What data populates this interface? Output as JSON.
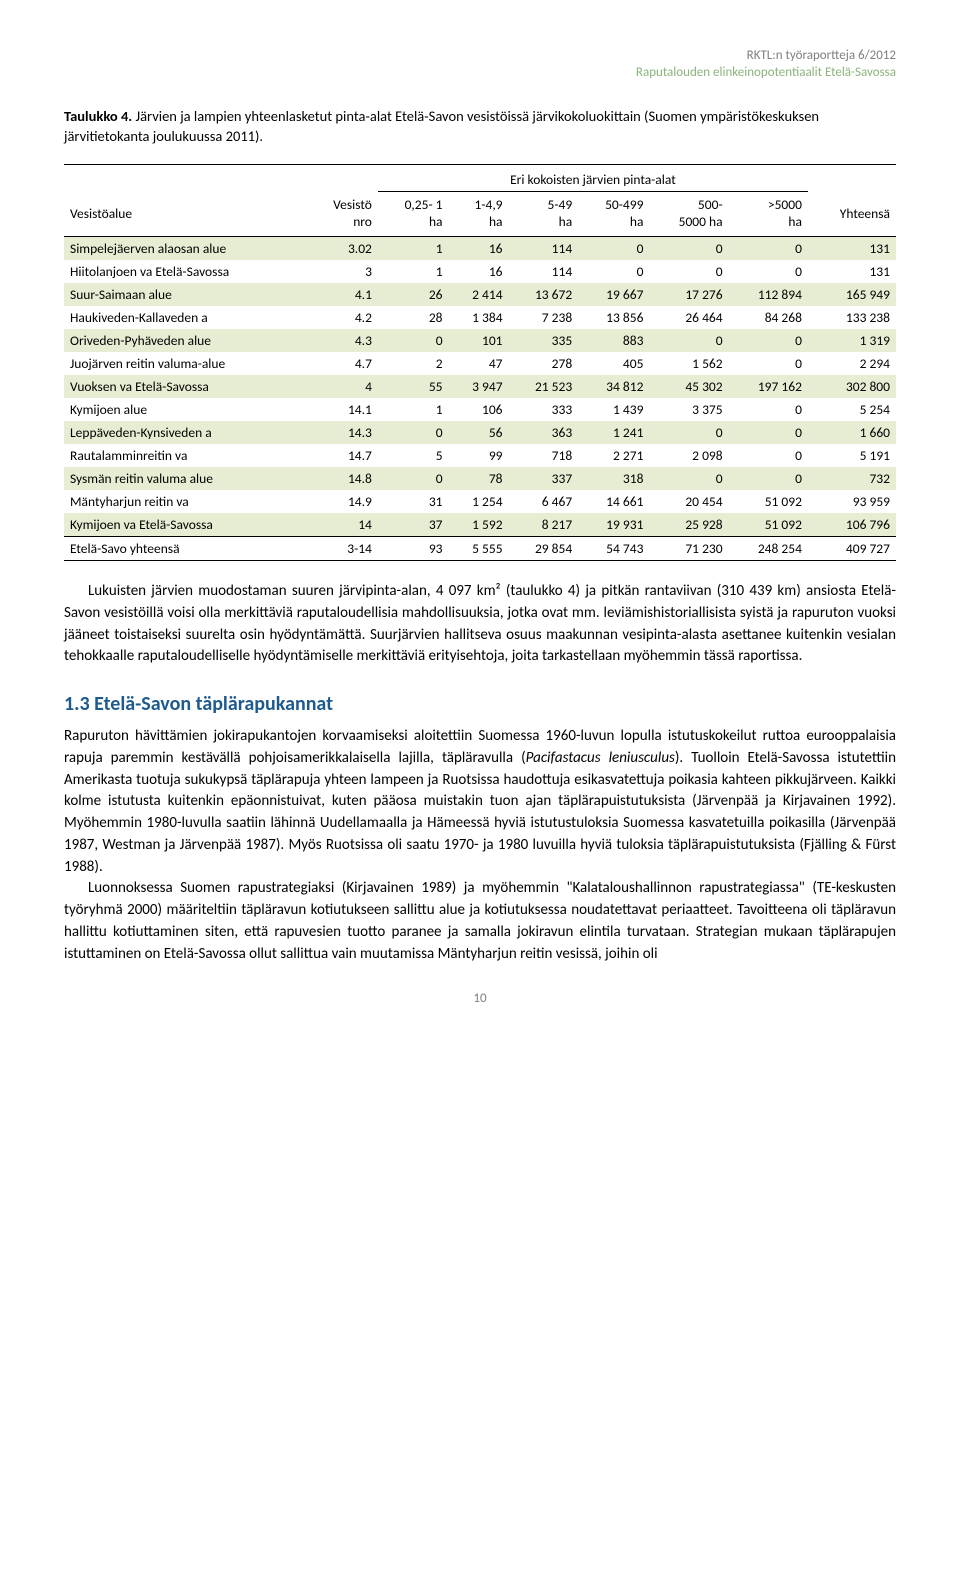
{
  "header": {
    "line1": "RKTL:n työraportteja 6/2012",
    "line2": "Raputalouden elinkeinopotentiaalit Etelä-Savossa"
  },
  "caption": {
    "bold": "Taulukko 4.",
    "text": " Järvien ja lampien yhteenlasketut pinta-alat Etelä-Savon vesistöissä järvikokoluokittain (Suomen ympäristökeskuksen järvitietokanta joulukuussa 2011)."
  },
  "table": {
    "superheader": "Eri kokoisten järvien pinta-alat",
    "columns": [
      "Vesistöalue",
      "Vesistö\nnro",
      "0,25- 1\nha",
      "1-4,9\nha",
      "5-49\nha",
      "50-499\nha",
      "500-\n5000 ha",
      ">5000\nha",
      "Yhteensä"
    ],
    "rows": [
      {
        "alt": true,
        "cells": [
          "Simpelejäerven alaosan alue",
          "3.02",
          "1",
          "16",
          "114",
          "0",
          "0",
          "0",
          "131"
        ]
      },
      {
        "alt": false,
        "cells": [
          "Hiitolanjoen va Etelä-Savossa",
          "3",
          "1",
          "16",
          "114",
          "0",
          "0",
          "0",
          "131"
        ]
      },
      {
        "alt": true,
        "cells": [
          "Suur-Saimaan alue",
          "4.1",
          "26",
          "2 414",
          "13 672",
          "19 667",
          "17 276",
          "112 894",
          "165 949"
        ]
      },
      {
        "alt": false,
        "cells": [
          "Haukiveden-Kallaveden a",
          "4.2",
          "28",
          "1 384",
          "7 238",
          "13 856",
          "26 464",
          "84 268",
          "133 238"
        ]
      },
      {
        "alt": true,
        "cells": [
          "Oriveden-Pyhäveden alue",
          "4.3",
          "0",
          "101",
          "335",
          "883",
          "0",
          "0",
          "1 319"
        ]
      },
      {
        "alt": false,
        "cells": [
          "Juojärven reitin valuma-alue",
          "4.7",
          "2",
          "47",
          "278",
          "405",
          "1 562",
          "0",
          "2 294"
        ]
      },
      {
        "alt": true,
        "cells": [
          "Vuoksen va Etelä-Savossa",
          "4",
          "55",
          "3 947",
          "21 523",
          "34 812",
          "45 302",
          "197 162",
          "302 800"
        ]
      },
      {
        "alt": false,
        "cells": [
          "Kymijoen alue",
          "14.1",
          "1",
          "106",
          "333",
          "1 439",
          "3 375",
          "0",
          "5 254"
        ]
      },
      {
        "alt": true,
        "cells": [
          "Leppäveden-Kynsiveden a",
          "14.3",
          "0",
          "56",
          "363",
          "1 241",
          "0",
          "0",
          "1 660"
        ]
      },
      {
        "alt": false,
        "cells": [
          "Rautalamminreitin va",
          "14.7",
          "5",
          "99",
          "718",
          "2 271",
          "2 098",
          "0",
          "5 191"
        ]
      },
      {
        "alt": true,
        "cells": [
          "Sysmän reitin valuma alue",
          "14.8",
          "0",
          "78",
          "337",
          "318",
          "0",
          "0",
          "732"
        ]
      },
      {
        "alt": false,
        "cells": [
          "Mäntyharjun reitin va",
          "14.9",
          "31",
          "1 254",
          "6 467",
          "14 661",
          "20 454",
          "51 092",
          "93 959"
        ]
      },
      {
        "alt": true,
        "cells": [
          "Kymijoen va Etelä-Savossa",
          "14",
          "37",
          "1 592",
          "8 217",
          "19 931",
          "25 928",
          "51 092",
          "106 796"
        ]
      }
    ],
    "total": {
      "cells": [
        "Etelä-Savo yhteensä",
        "3-14",
        "93",
        "5 555",
        "29 854",
        "54 743",
        "71 230",
        "248 254",
        "409 727"
      ]
    }
  },
  "para1": "Lukuisten järvien muodostaman suuren järvipinta-alan, 4 097 km² (taulukko 4) ja pitkän rantaviivan (310 439 km) ansiosta Etelä-Savon vesistöillä voisi olla merkittäviä raputaloudellisia mahdollisuuksia, jotka ovat mm. leviämishistoriallisista syistä ja rapuruton vuoksi jääneet toistaiseksi suurelta osin hyödyntämättä. Suurjärvien hallitseva osuus maakunnan vesipinta-alasta asettanee kuitenkin vesialan tehokkaalle raputaloudelliselle hyödyntämiselle merkittäviä erityisehtoja, joita tarkastellaan myöhemmin tässä raportissa.",
  "section_heading": "1.3 Etelä-Savon täplärapukannat",
  "para2_a": "Rapuruton hävittämien jokirapukantojen korvaamiseksi aloitettiin Suomessa 1960-luvun lopulla istutuskokeilut ruttoa eurooppalaisia rapuja paremmin kestävällä pohjoisamerikkalaisella lajilla, täpläravulla (",
  "para2_italic": "Pacifastacus leniusculus",
  "para2_b": "). Tuolloin Etelä-Savossa istutettiin Amerikasta tuotuja sukukypsä täplärapuja yhteen lampeen ja Ruotsissa haudottuja esikasvatettuja poikasia kahteen pikkujärveen. Kaikki kolme istutusta kuitenkin epäonnistuivat, kuten pääosa muistakin tuon ajan täplärapuistutuksista (Järvenpää ja Kirjavainen 1992). Myöhemmin 1980-luvulla saatiin lähinnä Uudellamaalla ja Hämeessä hyviä istutustuloksia Suomessa kasvatetuilla poikasilla (Järvenpää 1987, Westman ja Järvenpää 1987). Myös Ruotsissa oli saatu 1970- ja 1980 luvuilla hyviä tuloksia täplärapuistutuksista (Fjälling & Fürst 1988).",
  "para3": "Luonnoksessa Suomen rapustrategiaksi (Kirjavainen 1989) ja myöhemmin \"Kalataloushallinnon rapustrategiassa\" (TE-keskusten työryhmä 2000) määriteltiin täpläravun kotiutukseen sallittu alue ja kotiutuksessa noudatettavat periaatteet. Tavoitteena oli täpläravun hallittu kotiuttaminen siten, että rapuvesien tuotto paranee ja samalla jokiravun elintila turvataan. Strategian mukaan täplärapujen istuttaminen on Etelä-Savossa ollut sallittua vain muutamissa Mäntyharjun reitin vesissä, joihin oli",
  "page": "10",
  "colors": {
    "header_grey": "#7f7f7f",
    "header_green": "#8bb37a",
    "row_alt": "#e7edd3",
    "heading_blue": "#1f5a8f"
  }
}
